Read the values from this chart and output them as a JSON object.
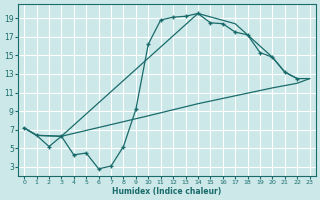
{
  "xlabel": "Humidex (Indice chaleur)",
  "bg_color": "#cce8e8",
  "grid_color": "#ffffff",
  "line_color": "#1a6b6b",
  "xlim": [
    -0.5,
    23.5
  ],
  "ylim": [
    2.0,
    20.5
  ],
  "xticks": [
    0,
    1,
    2,
    3,
    4,
    5,
    6,
    7,
    8,
    9,
    10,
    11,
    12,
    13,
    14,
    15,
    16,
    17,
    18,
    19,
    20,
    21,
    22,
    23
  ],
  "yticks": [
    3,
    5,
    7,
    9,
    11,
    13,
    15,
    17,
    19
  ],
  "curve1_x": [
    0,
    1,
    2,
    3,
    4,
    5,
    6,
    7,
    8,
    9,
    10,
    11,
    12,
    13,
    14,
    15,
    16,
    17,
    18,
    19,
    20,
    21,
    22
  ],
  "curve1_y": [
    7.2,
    6.4,
    5.2,
    6.3,
    4.3,
    4.5,
    2.8,
    3.1,
    5.2,
    9.2,
    16.2,
    18.8,
    19.1,
    19.2,
    19.5,
    18.5,
    18.4,
    17.5,
    17.2,
    15.3,
    14.8,
    13.2,
    12.5
  ],
  "curve2_x": [
    0,
    1,
    3,
    14,
    17,
    18,
    20,
    21,
    22,
    23
  ],
  "curve2_y": [
    7.2,
    6.4,
    6.3,
    19.5,
    18.4,
    17.2,
    14.8,
    13.2,
    12.5,
    12.5
  ],
  "curve3_x": [
    0,
    1,
    3,
    10,
    14,
    20,
    22,
    23
  ],
  "curve3_y": [
    7.2,
    6.4,
    6.3,
    8.5,
    9.8,
    11.5,
    12.0,
    12.5
  ]
}
